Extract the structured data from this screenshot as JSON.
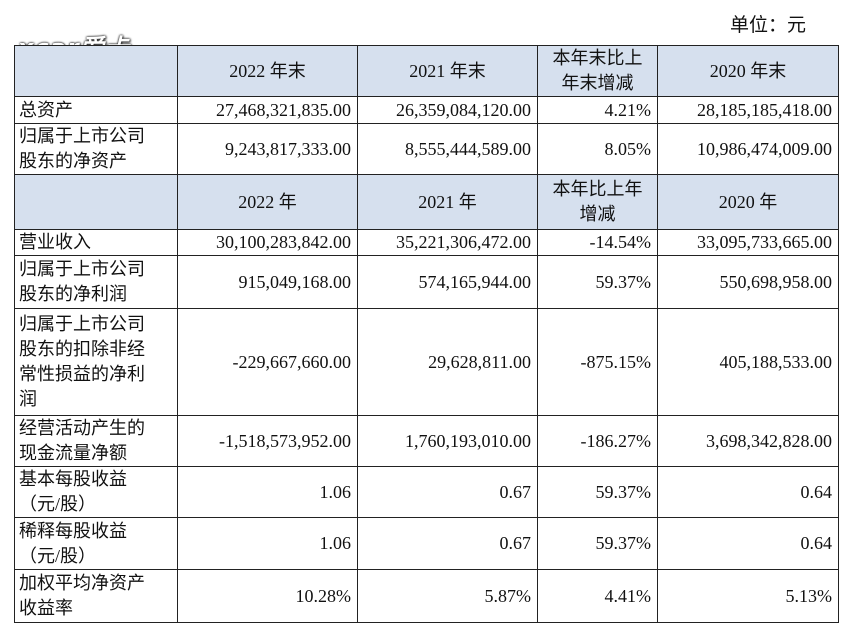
{
  "unit": "单位：元",
  "logo": "xcar爱卡",
  "sections": [
    {
      "header": [
        [
          "2022 年末"
        ],
        [
          "2021 年末"
        ],
        [
          "本年末比上",
          "年末增减"
        ],
        [
          "2020 年末"
        ]
      ],
      "rows": [
        {
          "label": [
            "总资产"
          ],
          "values": [
            "27,468,321,835.00",
            "26,359,084,120.00",
            "4.21%",
            "28,185,185,418.00"
          ]
        },
        {
          "label": [
            "归属于上市公司",
            "股东的净资产"
          ],
          "values": [
            "9,243,817,333.00",
            "8,555,444,589.00",
            "8.05%",
            "10,986,474,009.00"
          ]
        }
      ]
    },
    {
      "header": [
        [
          "2022 年"
        ],
        [
          "2021 年"
        ],
        [
          "本年比上年",
          "增减"
        ],
        [
          "2020 年"
        ]
      ],
      "rows": [
        {
          "label": [
            "营业收入"
          ],
          "values": [
            "30,100,283,842.00",
            "35,221,306,472.00",
            "-14.54%",
            "33,095,733,665.00"
          ]
        },
        {
          "label": [
            "归属于上市公司",
            "股东的净利润"
          ],
          "values": [
            "915,049,168.00",
            "574,165,944.00",
            "59.37%",
            "550,698,958.00"
          ]
        },
        {
          "label": [
            "归属于上市公司",
            "股东的扣除非经",
            "常性损益的净利",
            "润"
          ],
          "values": [
            "-229,667,660.00",
            "29,628,811.00",
            "-875.15%",
            "405,188,533.00"
          ]
        },
        {
          "label": [
            "经营活动产生的",
            "现金流量净额"
          ],
          "values": [
            "-1,518,573,952.00",
            "1,760,193,010.00",
            "-186.27%",
            "3,698,342,828.00"
          ]
        },
        {
          "label": [
            "基本每股收益",
            "（元/股）"
          ],
          "values": [
            "1.06",
            "0.67",
            "59.37%",
            "0.64"
          ]
        },
        {
          "label": [
            "稀释每股收益",
            "（元/股）"
          ],
          "values": [
            "1.06",
            "0.67",
            "59.37%",
            "0.64"
          ]
        },
        {
          "label": [
            "加权平均净资产",
            "收益率"
          ],
          "values": [
            "10.28%",
            "5.87%",
            "4.41%",
            "5.13%"
          ]
        }
      ]
    }
  ]
}
